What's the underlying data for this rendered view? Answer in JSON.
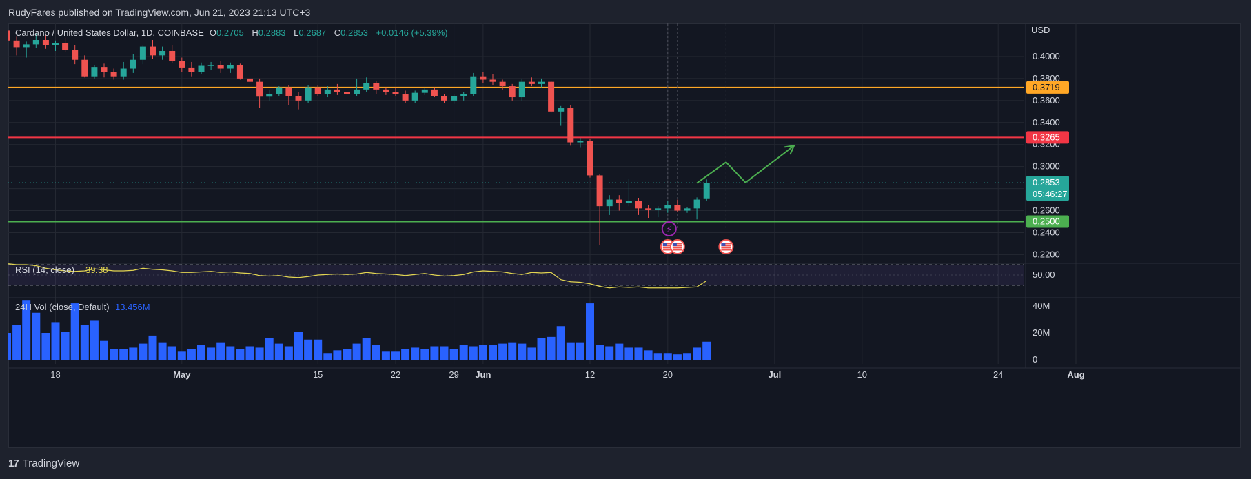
{
  "header": {
    "published_by": "RudyFares published on TradingView.com, Jun 21, 2023 21:13 UTC+3"
  },
  "footer": {
    "brand": "TradingView",
    "logo_glyph": "17"
  },
  "colors": {
    "up": "#26a69a",
    "down": "#ef5350",
    "orange": "#ffa726",
    "red_line": "#f23645",
    "green_line": "#4caf50",
    "rsi": "#e2d552",
    "volume": "#2962ff",
    "projection": "#4caf50",
    "event_purple": "#9c27b0"
  },
  "chart_data": {
    "type": "candlestick",
    "symbol": "Cardano / United States Dollar, 1D, COINBASE",
    "ohlc_legend": {
      "o_label": "O",
      "o": "0.2705",
      "h_label": "H",
      "h": "0.2883",
      "l_label": "L",
      "l": "0.2687",
      "c_label": "C",
      "c": "0.2853",
      "change": "+0.0146 (+5.39%)"
    },
    "currency": "USD",
    "ylim": [
      0.214,
      0.415
    ],
    "y_ticks": [
      "0.2200",
      "0.2400",
      "0.2600",
      "0.2800",
      "0.3000",
      "0.3200",
      "0.3400",
      "0.3600",
      "0.3800",
      "0.4000"
    ],
    "x_ticks": [
      "18",
      "May",
      "15",
      "22",
      "29",
      "Jun",
      "12",
      "20",
      "Jul",
      "10",
      "24",
      "Aug"
    ],
    "x_tick_dates": [
      "2023-04-18",
      "2023-05-01",
      "2023-05-15",
      "2023-05-23",
      "2023-05-29",
      "2023-06-01",
      "2023-06-12",
      "2023-06-20",
      "2023-07-01",
      "2023-07-10",
      "2023-07-24",
      "2023-08-01"
    ],
    "start_date": "2023-04-13",
    "candles": [
      [
        0.4235,
        0.428,
        0.406,
        0.4145
      ],
      [
        0.4145,
        0.4185,
        0.401,
        0.4085
      ],
      [
        0.4085,
        0.4135,
        0.399,
        0.411
      ],
      [
        0.411,
        0.421,
        0.408,
        0.415
      ],
      [
        0.415,
        0.4195,
        0.407,
        0.41
      ],
      [
        0.41,
        0.4145,
        0.405,
        0.412
      ],
      [
        0.412,
        0.417,
        0.404,
        0.406
      ],
      [
        0.406,
        0.41,
        0.393,
        0.397
      ],
      [
        0.397,
        0.401,
        0.381,
        0.382
      ],
      [
        0.382,
        0.392,
        0.38,
        0.3905
      ],
      [
        0.3905,
        0.3935,
        0.381,
        0.386
      ],
      [
        0.386,
        0.389,
        0.379,
        0.382
      ],
      [
        0.382,
        0.395,
        0.379,
        0.389
      ],
      [
        0.389,
        0.402,
        0.385,
        0.397
      ],
      [
        0.397,
        0.41,
        0.393,
        0.409
      ],
      [
        0.409,
        0.415,
        0.398,
        0.401
      ],
      [
        0.401,
        0.409,
        0.397,
        0.405
      ],
      [
        0.405,
        0.41,
        0.394,
        0.396
      ],
      [
        0.396,
        0.399,
        0.386,
        0.39
      ],
      [
        0.39,
        0.395,
        0.382,
        0.386
      ],
      [
        0.386,
        0.3945,
        0.384,
        0.3915
      ],
      [
        0.3915,
        0.395,
        0.388,
        0.392
      ],
      [
        0.392,
        0.396,
        0.385,
        0.389
      ],
      [
        0.389,
        0.3945,
        0.385,
        0.392
      ],
      [
        0.392,
        0.3935,
        0.379,
        0.38
      ],
      [
        0.38,
        0.381,
        0.375,
        0.377
      ],
      [
        0.377,
        0.38,
        0.353,
        0.3635
      ],
      [
        0.3635,
        0.37,
        0.36,
        0.366
      ],
      [
        0.366,
        0.373,
        0.364,
        0.372
      ],
      [
        0.372,
        0.374,
        0.356,
        0.364
      ],
      [
        0.364,
        0.368,
        0.352,
        0.36
      ],
      [
        0.36,
        0.374,
        0.358,
        0.372
      ],
      [
        0.372,
        0.374,
        0.364,
        0.366
      ],
      [
        0.366,
        0.373,
        0.363,
        0.37
      ],
      [
        0.37,
        0.375,
        0.365,
        0.368
      ],
      [
        0.368,
        0.373,
        0.362,
        0.366
      ],
      [
        0.366,
        0.38,
        0.364,
        0.37
      ],
      [
        0.37,
        0.381,
        0.368,
        0.376
      ],
      [
        0.376,
        0.378,
        0.366,
        0.37
      ],
      [
        0.37,
        0.372,
        0.365,
        0.368
      ],
      [
        0.368,
        0.372,
        0.364,
        0.366
      ],
      [
        0.366,
        0.369,
        0.358,
        0.36
      ],
      [
        0.36,
        0.369,
        0.358,
        0.367
      ],
      [
        0.367,
        0.372,
        0.365,
        0.37
      ],
      [
        0.37,
        0.372,
        0.363,
        0.364
      ],
      [
        0.364,
        0.366,
        0.358,
        0.36
      ],
      [
        0.36,
        0.366,
        0.357,
        0.364
      ],
      [
        0.364,
        0.368,
        0.36,
        0.366
      ],
      [
        0.366,
        0.385,
        0.364,
        0.382
      ],
      [
        0.382,
        0.386,
        0.376,
        0.379
      ],
      [
        0.379,
        0.384,
        0.374,
        0.377
      ],
      [
        0.377,
        0.379,
        0.37,
        0.373
      ],
      [
        0.373,
        0.375,
        0.36,
        0.363
      ],
      [
        0.363,
        0.38,
        0.36,
        0.377
      ],
      [
        0.377,
        0.381,
        0.373,
        0.375
      ],
      [
        0.375,
        0.38,
        0.372,
        0.377
      ],
      [
        0.377,
        0.378,
        0.349,
        0.35
      ],
      [
        0.35,
        0.355,
        0.337,
        0.353
      ],
      [
        0.353,
        0.356,
        0.319,
        0.322
      ],
      [
        0.322,
        0.326,
        0.317,
        0.323
      ],
      [
        0.323,
        0.325,
        0.29,
        0.292
      ],
      [
        0.292,
        0.293,
        0.229,
        0.264
      ],
      [
        0.264,
        0.274,
        0.256,
        0.27
      ],
      [
        0.27,
        0.274,
        0.26,
        0.267
      ],
      [
        0.267,
        0.289,
        0.264,
        0.269
      ],
      [
        0.269,
        0.271,
        0.256,
        0.262
      ],
      [
        0.262,
        0.265,
        0.253,
        0.261
      ],
      [
        0.261,
        0.264,
        0.254,
        0.262
      ],
      [
        0.262,
        0.269,
        0.258,
        0.265
      ],
      [
        0.265,
        0.27,
        0.259,
        0.26
      ],
      [
        0.26,
        0.263,
        0.258,
        0.262
      ],
      [
        0.262,
        0.272,
        0.252,
        0.27
      ],
      [
        0.2705,
        0.2883,
        0.2687,
        0.2853
      ]
    ],
    "support_resistance": [
      {
        "price": 0.3719,
        "label": "0.3719",
        "color": "#ffa726"
      },
      {
        "price": 0.3265,
        "label": "0.3265",
        "color": "#f23645"
      },
      {
        "price": 0.25,
        "label": "0.2500",
        "color": "#4caf50"
      }
    ],
    "last_price": {
      "label": "0.2853",
      "countdown": "05:46:27",
      "value": 0.2853
    },
    "projection_path": [
      [
        "2023-06-23",
        0.285
      ],
      [
        "2023-06-26",
        0.304
      ],
      [
        "2023-06-28",
        0.2855
      ],
      [
        "2023-07-03",
        0.319
      ]
    ],
    "rsi": {
      "label": "RSI (14, close)",
      "value": "39.38",
      "tick": "50.00",
      "values": [
        72,
        70,
        70,
        68,
        63,
        60,
        58,
        57,
        58,
        62,
        60,
        58,
        58,
        59,
        63,
        61,
        60,
        58,
        55,
        55,
        56,
        57,
        55,
        56,
        54,
        53,
        49,
        48,
        49,
        46,
        45,
        47,
        50,
        51,
        52,
        51,
        52,
        55,
        53,
        52,
        51,
        49,
        51,
        53,
        50,
        48,
        49,
        51,
        56,
        58,
        57,
        56,
        53,
        51,
        55,
        54,
        55,
        41,
        37,
        36,
        33,
        28,
        25,
        27,
        26,
        27,
        25,
        25,
        25,
        25,
        26,
        27,
        39
      ]
    },
    "volume": {
      "label": "24H Vol (close, Default)",
      "value": "13.456M",
      "y_ticks": [
        "40M",
        "20M",
        "0"
      ],
      "values": [
        20,
        26,
        44,
        35,
        20,
        28,
        21,
        42,
        26,
        29,
        14,
        8,
        8,
        9,
        12,
        18,
        13,
        10,
        6,
        8,
        11,
        9,
        13,
        10,
        8,
        10,
        9,
        16,
        12,
        10,
        21,
        15,
        15,
        5,
        7,
        8,
        12,
        16,
        11,
        6,
        6,
        8,
        9,
        8,
        10,
        10,
        8,
        11,
        10,
        11,
        11,
        12,
        13,
        12,
        9,
        16,
        17,
        25,
        13,
        13,
        42,
        11,
        10,
        12,
        9,
        9,
        7,
        5,
        5,
        4,
        5,
        9,
        13.456
      ]
    },
    "event_markers": [
      {
        "date": "2023-06-20",
        "kind": "lightning"
      },
      {
        "date": "2023-06-20",
        "kind": "us-flag"
      },
      {
        "date": "2023-06-21",
        "kind": "us-flag"
      },
      {
        "date": "2023-06-26",
        "kind": "us-flag"
      }
    ]
  }
}
